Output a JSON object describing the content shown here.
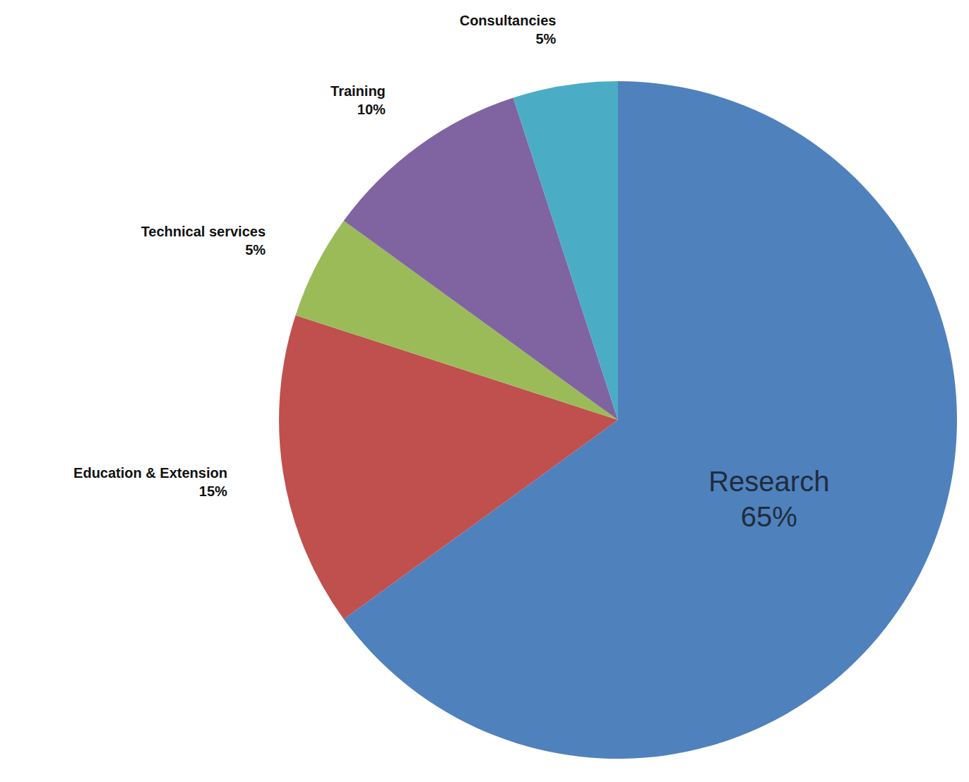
{
  "chart_data": {
    "type": "pie",
    "categories": [
      "Research",
      "Education & Extension",
      "Technical services",
      "Training",
      "Consultancies"
    ],
    "values": [
      65,
      15,
      5,
      10,
      5
    ],
    "value_labels": [
      "65%",
      "15%",
      "5%",
      "10%",
      "5%"
    ],
    "colors": [
      "#4f81bd",
      "#c0504d",
      "#9bbb59",
      "#8064a2",
      "#4bacc6"
    ],
    "data_labels": true
  }
}
